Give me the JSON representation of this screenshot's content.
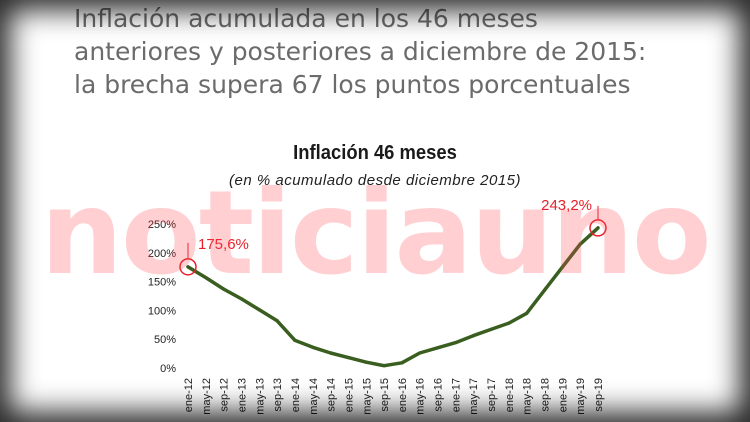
{
  "headline": {
    "lines": [
      "Inflación acumulada en los 46 meses",
      "anteriores y posteriores a diciembre de 2015:",
      "la brecha supera 67 los puntos porcentuales"
    ]
  },
  "watermark": "noticiauno",
  "colors": {
    "line": "#3a5e1f",
    "annotation": "#e8202a",
    "axis_text": "#222222"
  },
  "chart_data": {
    "type": "line",
    "title": "Inflación 46 meses",
    "subtitle": "(en % acumulado desde diciembre 2015)",
    "xlabel": "",
    "ylabel": "",
    "ylim": [
      0,
      250
    ],
    "grid": false,
    "legend": "none",
    "yticks": [
      0,
      50,
      100,
      150,
      200,
      250
    ],
    "ytick_labels": [
      "0%",
      "50%",
      "100%",
      "150%",
      "200%",
      "250%"
    ],
    "xtick_labels": [
      "ene-12",
      "may-12",
      "sep-12",
      "ene-13",
      "may-13",
      "sep-13",
      "ene-14",
      "may-14",
      "sep-14",
      "ene-15",
      "may-15",
      "sep-15",
      "ene-16",
      "may-16",
      "sep-16",
      "ene-17",
      "may-17",
      "sep-17",
      "ene-18",
      "may-18",
      "sep-18",
      "ene-19",
      "may-19",
      "sep-19"
    ],
    "x": [
      "ene-12",
      "may-12",
      "sep-12",
      "ene-13",
      "may-13",
      "sep-13",
      "ene-14",
      "may-14",
      "sep-14",
      "ene-15",
      "may-15",
      "sep-15",
      "ene-16",
      "may-16",
      "sep-16",
      "ene-17",
      "may-17",
      "sep-17",
      "ene-18",
      "may-18",
      "sep-18",
      "ene-19",
      "may-19",
      "sep-19"
    ],
    "series": [
      {
        "values": [
          175.6,
          157,
          137,
          120,
          101,
          82,
          48,
          36,
          26,
          18,
          10,
          4,
          9,
          26,
          35,
          44,
          56,
          67,
          78,
          95,
          135,
          175,
          215,
          243.2
        ]
      }
    ],
    "annotations": [
      {
        "label": "175,6%",
        "x": "ene-12",
        "y": 175.6
      },
      {
        "label": "243,2%",
        "x": "sep-19",
        "y": 243.2
      }
    ]
  }
}
